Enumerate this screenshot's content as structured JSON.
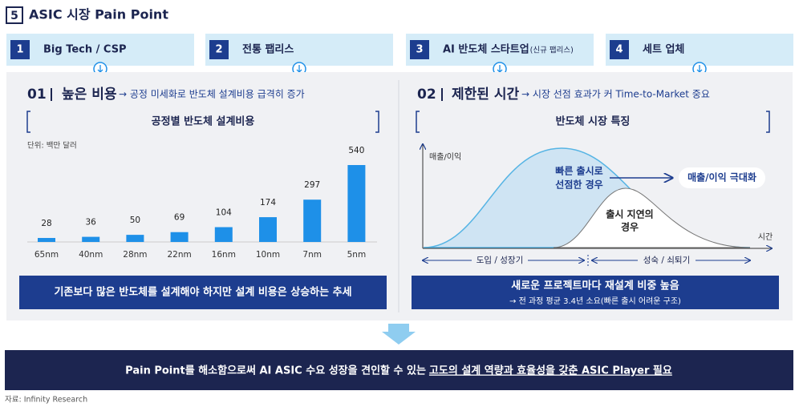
{
  "header": {
    "icon": "5",
    "title": "ASIC 시장 Pain Point"
  },
  "tabs": [
    {
      "number": "1",
      "label": "Big Tech / CSP"
    },
    {
      "number": "2",
      "label": "전통 팹리스"
    },
    {
      "number": "3",
      "label": "AI 반도체 스타트업",
      "note": "(신규 팹리스)"
    },
    {
      "number": "4",
      "label": "세트 업체"
    }
  ],
  "left_panel": {
    "number": "01",
    "heading": "높은 비용",
    "subtitle": "→ 공정 미세화로 반도체 설계비용 급격히 증가",
    "box_title": "공정별 반도체 설계비용",
    "unit": "단위: 백만 달러",
    "summary": "기존보다 많은 반도체를 설계해야 하지만 설계 비용은 상승하는 추세"
  },
  "chart_data": {
    "type": "bar",
    "categories": [
      "65nm",
      "40nm",
      "28nm",
      "22nm",
      "16nm",
      "10nm",
      "7nm",
      "5nm"
    ],
    "values": [
      28,
      36,
      50,
      69,
      104,
      174,
      297,
      540
    ],
    "color": "#1e90e8"
  },
  "right_panel": {
    "number": "02",
    "heading": "제한된 시간",
    "subtitle": "→ 시장 선점 효과가 커 Time-to-Market 중요",
    "box_title": "반도체 시장 특징",
    "y_label": "매출/이익",
    "x_label": "시간",
    "early_label": [
      "빠른 출시로",
      "선점한 경우"
    ],
    "result": "매출/이익 극대화",
    "late_label": [
      "출시 지연의",
      "경우"
    ],
    "phase_1": "도입 / 성장기",
    "phase_2": "성숙 / 쇠퇴기",
    "summary": "새로운 프로젝트마다 재설계 비중 높음",
    "summary_note": "→ 전 과정 평균 3.4년 소요(빠른 출시 어려운 구조)"
  },
  "footer": {
    "text": "Pain Point를 해소함으로써 AI ASIC 수요 성장을 견인할 수 있는",
    "emphasis": "고도의 설계 역량과 효율성을 갖춘 ASIC Player 필요"
  },
  "source": "자료: Infinity Research"
}
